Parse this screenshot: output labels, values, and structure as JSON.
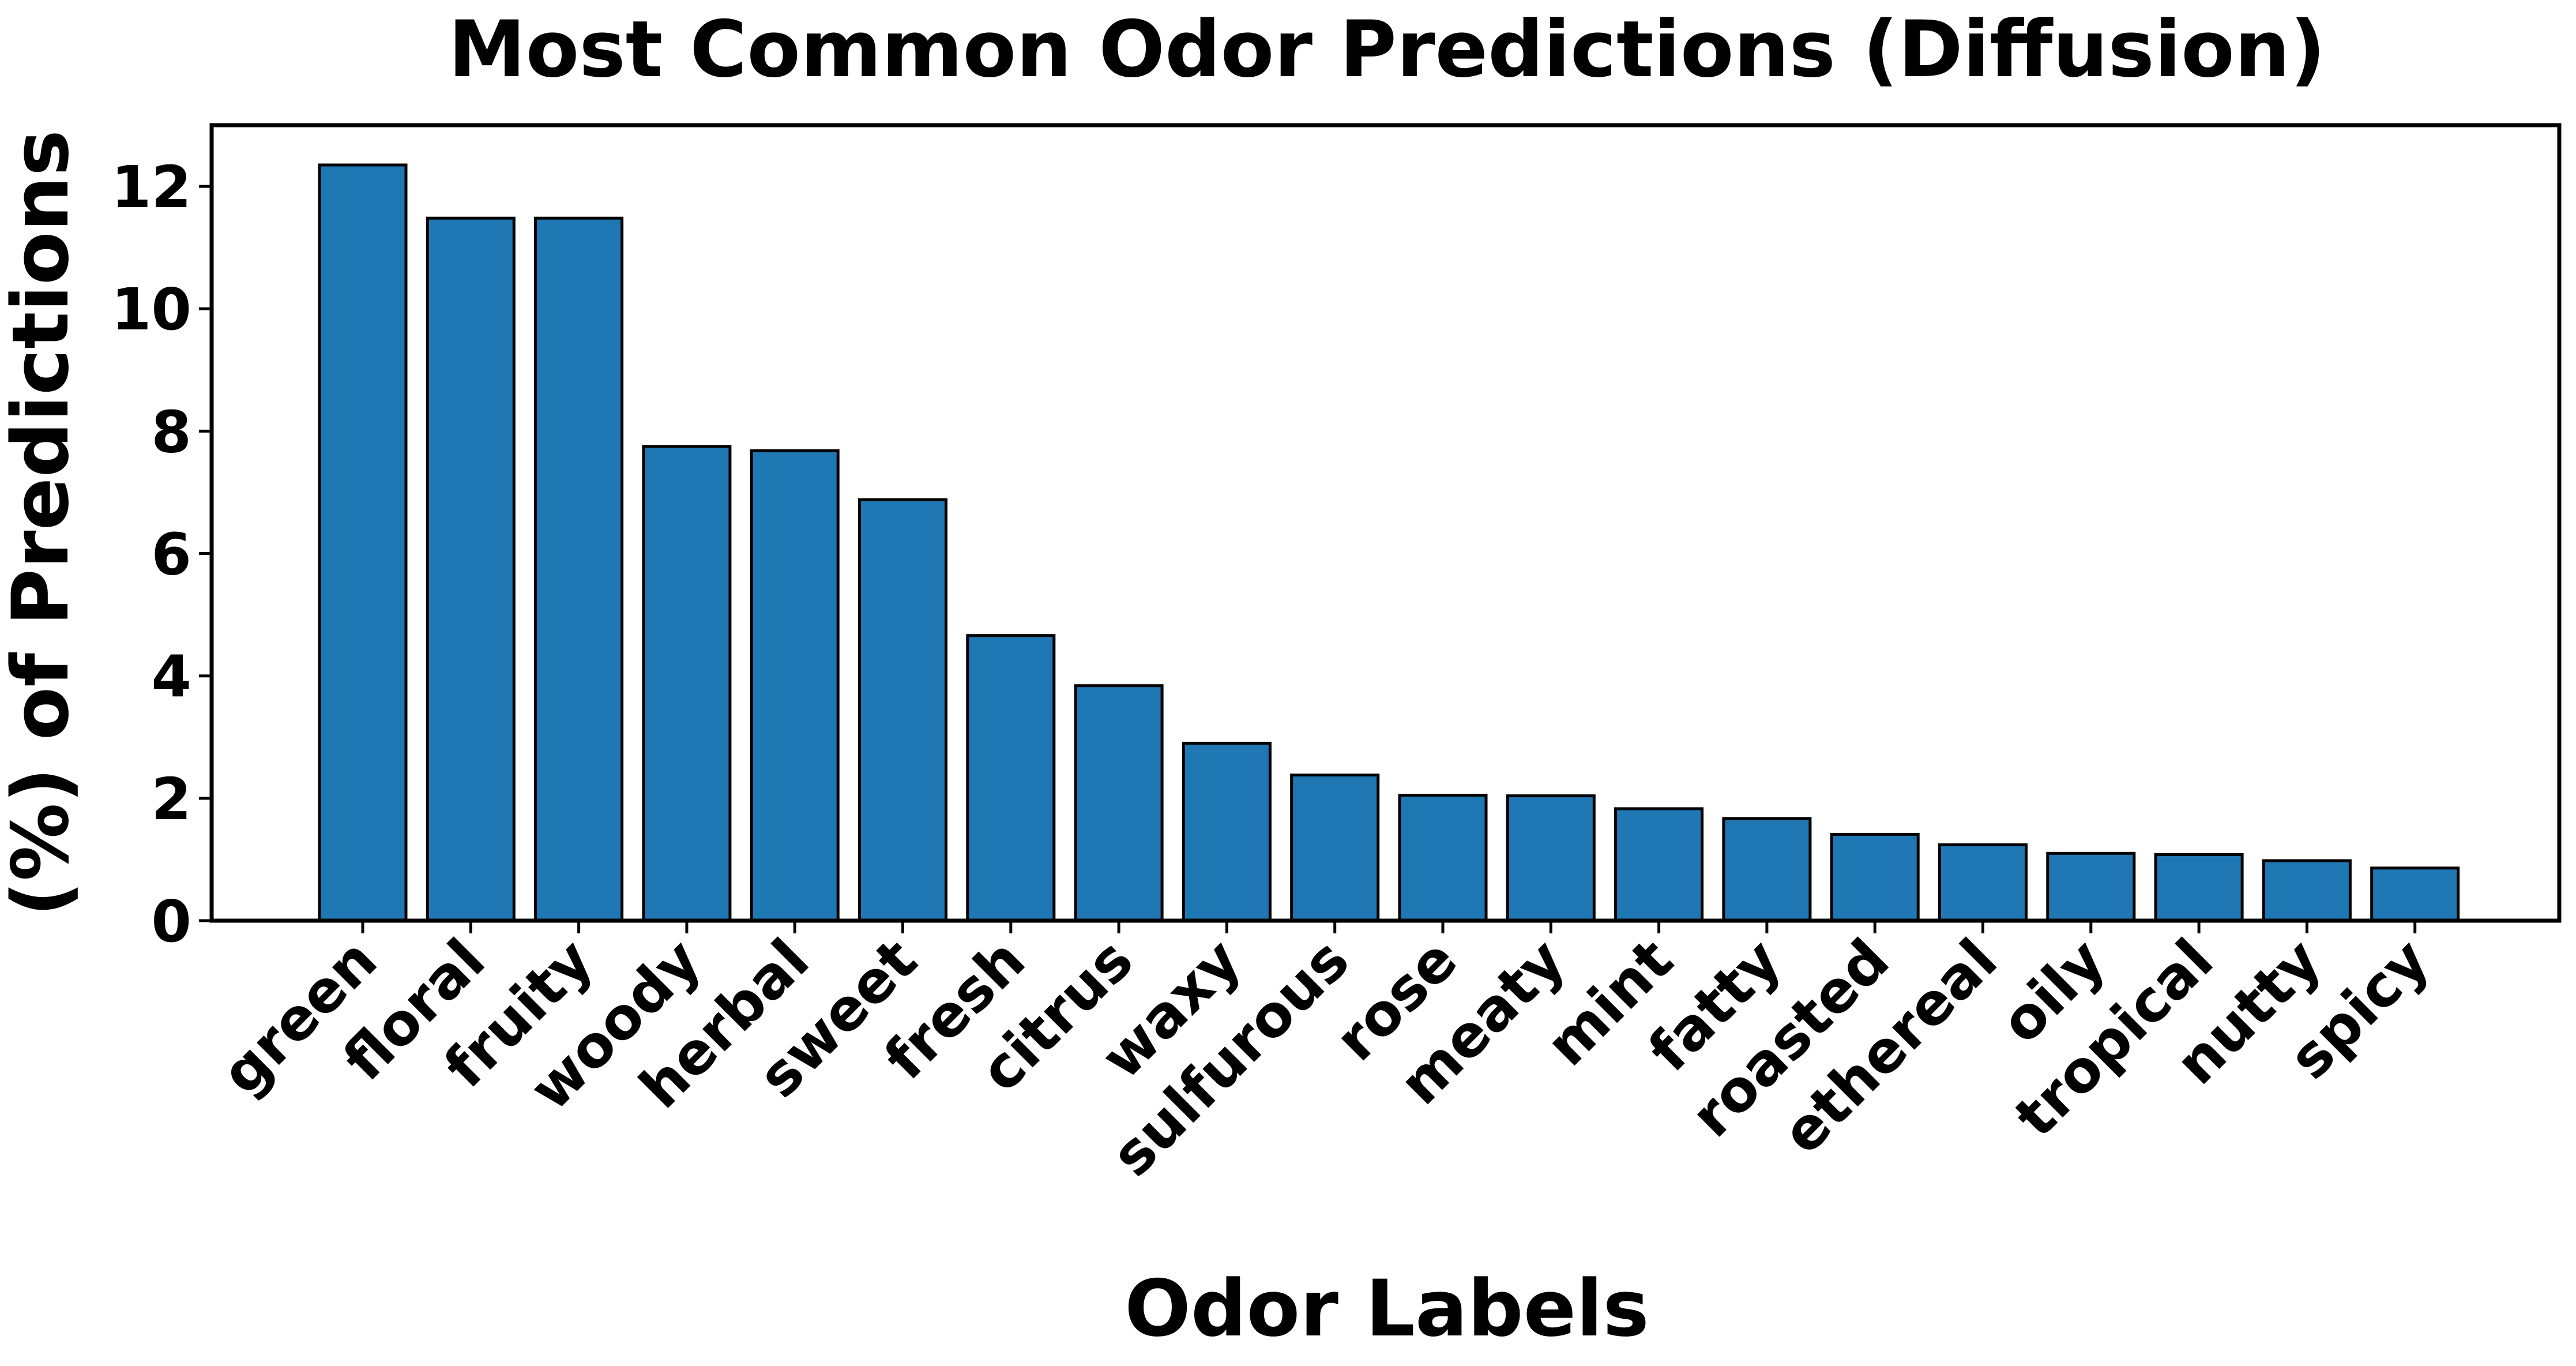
{
  "chart_data": {
    "type": "bar",
    "title": "Most Common Odor Predictions (Diffusion)",
    "xlabel": "Odor Labels",
    "ylabel": "(%) of Predictions",
    "categories": [
      "green",
      "floral",
      "fruity",
      "woody",
      "herbal",
      "sweet",
      "fresh",
      "citrus",
      "waxy",
      "sulfurous",
      "rose",
      "meaty",
      "mint",
      "fatty",
      "roasted",
      "ethereal",
      "oily",
      "tropical",
      "nutty",
      "spicy"
    ],
    "values": [
      12.35,
      11.48,
      11.48,
      7.75,
      7.68,
      6.88,
      4.66,
      3.84,
      2.9,
      2.38,
      2.05,
      2.04,
      1.83,
      1.67,
      1.41,
      1.24,
      1.1,
      1.08,
      0.98,
      0.86
    ],
    "yticks": [
      "0",
      "2",
      "4",
      "6",
      "8",
      "10",
      "12"
    ],
    "ylim": [
      0,
      13
    ],
    "grid": false,
    "bar_color": "#1f77b4",
    "edge_color": "#000000"
  }
}
